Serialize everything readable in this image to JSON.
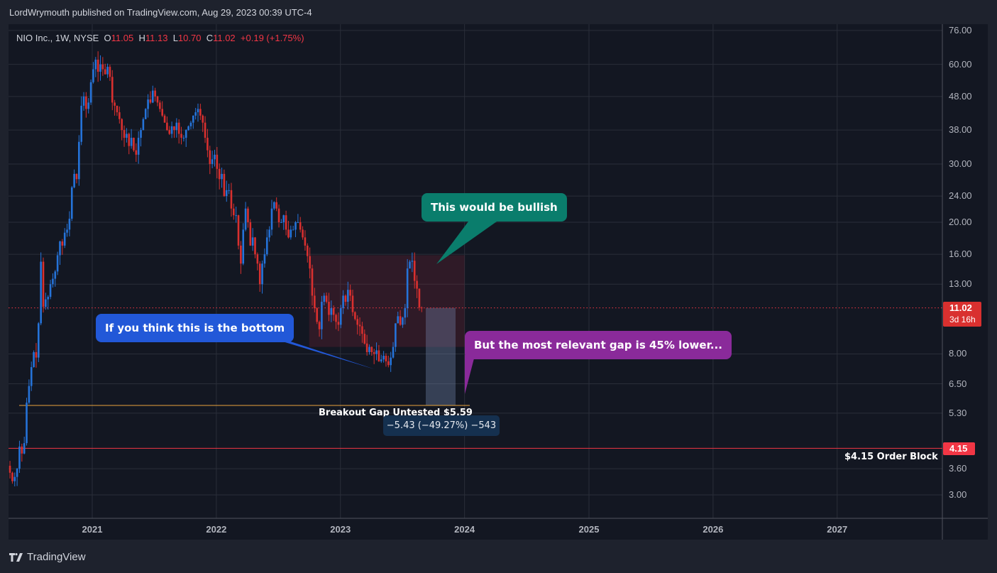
{
  "header": {
    "published": "LordWrymouth published on TradingView.com, Aug 29, 2023 00:39 UTC-4"
  },
  "legend": {
    "symbol": "NIO Inc., 1W, NYSE",
    "o_label": "O",
    "o": "11.05",
    "h_label": "H",
    "h": "11.13",
    "l_label": "L",
    "l": "10.70",
    "c_label": "C",
    "c": "11.02",
    "change": "+0.19 (+1.75%)"
  },
  "chart_data": {
    "type": "candlestick",
    "interval": "1W",
    "y_scale": "log",
    "ylim": [
      2.7,
      80
    ],
    "xlim": [
      "2020-05",
      "2027-10"
    ],
    "grid": true,
    "y_ticks": [
      "76.00",
      "60.00",
      "48.00",
      "38.00",
      "30.00",
      "24.00",
      "20.00",
      "16.00",
      "13.00",
      "8.00",
      "6.50",
      "5.30",
      "3.60",
      "3.00"
    ],
    "x_ticks": [
      "2021",
      "2022",
      "2023",
      "2024",
      "2025",
      "2026",
      "2027"
    ],
    "weekly_close_by_month": {
      "2020-05": [
        3.5,
        3.3,
        3.4,
        3.6
      ],
      "2020-06": [
        4.2,
        4.0,
        4.3,
        5.7,
        6.4
      ],
      "2020-07": [
        7.3,
        8.1,
        7.8,
        9.9
      ],
      "2020-08": [
        15.2,
        11.1,
        11.7,
        11.9,
        13.0
      ],
      "2020-09": [
        13.5,
        14.2,
        15.9,
        17.5
      ],
      "2020-10": [
        17.0,
        18.6,
        19.0,
        20.5
      ],
      "2020-11": [
        25.5,
        28.0,
        27.0,
        35.0,
        45.0
      ],
      "2020-12": [
        48.0,
        44.0,
        46.0,
        53.0
      ],
      "2021-01": [
        58.0,
        62.0,
        57.0,
        60.0
      ],
      "2021-02": [
        58.0,
        56.0,
        59.0,
        55.0
      ],
      "2021-03": [
        46.0,
        45.0,
        43.0,
        41.0,
        38.0
      ],
      "2021-04": [
        36.0,
        37.0,
        34.0,
        36.0
      ],
      "2021-05": [
        33.0,
        32.0,
        36.0,
        38.0,
        41.0
      ],
      "2021-06": [
        44.0,
        47.0,
        46.0,
        50.0
      ],
      "2021-07": [
        48.0,
        46.0,
        44.0,
        42.0
      ],
      "2021-08": [
        40.0,
        38.0,
        37.0,
        39.0,
        38.0
      ],
      "2021-09": [
        40.0,
        37.0,
        36.0,
        36.0
      ],
      "2021-10": [
        38.0,
        39.0,
        40.0,
        42.0
      ],
      "2021-11": [
        43.0,
        44.0,
        42.0,
        40.0,
        36.0
      ],
      "2021-12": [
        33.0,
        30.0,
        31.0,
        32.0
      ],
      "2022-01": [
        29.0,
        27.0,
        28.0,
        24.0,
        25.0
      ],
      "2022-02": [
        25.0,
        22.0,
        21.0,
        21.0
      ],
      "2022-03": [
        17.0,
        15.0,
        19.0,
        22.0
      ],
      "2022-04": [
        20.0,
        17.0,
        18.0,
        16.0
      ],
      "2022-05": [
        15.0,
        13.0,
        15.0,
        16.0,
        18.0
      ],
      "2022-06": [
        19.0,
        22.0,
        23.0,
        22.0
      ],
      "2022-07": [
        20.0,
        20.0,
        21.0,
        19.0
      ],
      "2022-08": [
        18.0,
        19.0,
        19.0,
        20.0,
        20.0
      ],
      "2022-09": [
        19.0,
        18.0,
        17.0,
        15.8
      ],
      "2022-10": [
        14.5,
        12.0,
        11.0,
        10.0,
        9.5
      ],
      "2022-11": [
        11.5,
        12.0,
        11.5,
        10.5
      ],
      "2022-12": [
        11.0,
        10.5,
        10.0,
        9.8
      ],
      "2023-01": [
        11.0,
        12.0,
        11.5,
        12.5,
        12.0
      ],
      "2023-02": [
        10.7,
        10.2,
        9.8,
        9.7
      ],
      "2023-03": [
        9.2,
        8.6,
        8.1,
        8.4
      ],
      "2023-04": [
        8.1,
        8.0,
        8.2,
        7.6
      ],
      "2023-05": [
        7.7,
        7.9,
        7.6,
        7.4,
        7.8
      ],
      "2023-06": [
        8.4,
        9.9,
        10.4,
        9.8
      ],
      "2023-07": [
        10.3,
        11.0,
        14.5,
        15.2,
        15.3
      ],
      "2023-08": [
        13.3,
        12.6,
        11.05,
        11.02
      ]
    },
    "last_bar": {
      "open": 11.05,
      "high": 11.13,
      "low": 10.7,
      "close": 11.02
    },
    "current_price": {
      "value": "11.02",
      "countdown": "3d 16h"
    },
    "order_block": {
      "value": "4.15",
      "label": "$4.15 Order Block"
    },
    "breakout_gap": {
      "price": 5.59,
      "label": "Breakout Gap Untested $5.59"
    },
    "zone": {
      "from": "2022-10",
      "to": "2024-01",
      "low": 8.4,
      "high": 15.9
    },
    "measure": {
      "from": 11.02,
      "to": 5.59,
      "label": "−5.43 (−49.27%) −543"
    },
    "annotations": [
      {
        "text": "This would be bullish",
        "color": "#0a7d6c"
      },
      {
        "text": "If you think this is the bottom",
        "color": "#2258d8"
      },
      {
        "text": "But the most relevant gap is 45% lower...",
        "color": "#8a2a9a"
      }
    ],
    "colors": {
      "up": "#2573d9",
      "down": "#d9302f",
      "order_block": "#f23645",
      "breakout_gap": "#e8a33c"
    }
  },
  "footer": {
    "brand": "TradingView"
  }
}
